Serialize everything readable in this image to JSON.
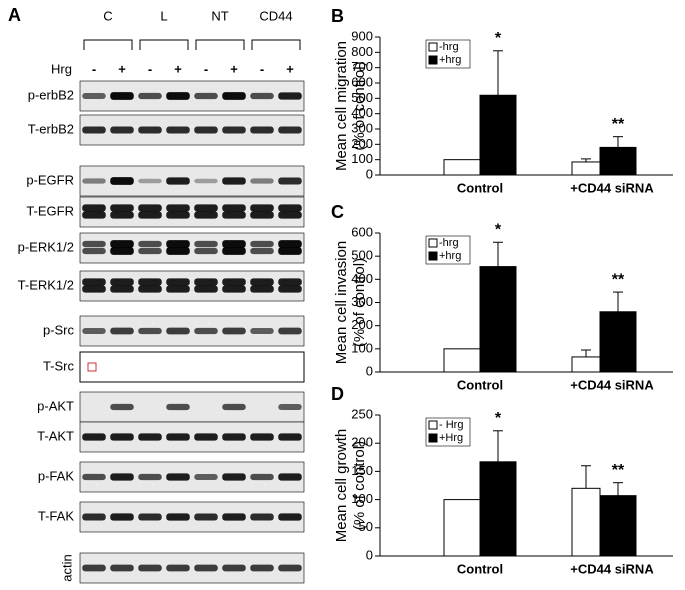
{
  "panel_a": {
    "label": "A",
    "groups": [
      "C",
      "L",
      "NT",
      "CD44"
    ],
    "treatment_label": "Hrg",
    "treatments": [
      "-",
      "+",
      "-",
      "+",
      "-",
      "+",
      "-",
      "+"
    ],
    "blots": [
      "p-erbB2",
      "T-erbB2",
      "p-EGFR",
      "T-EGFR",
      "p-ERK1/2",
      "T-ERK1/2",
      "p-Src",
      "T-Src",
      "p-AKT",
      "T-AKT",
      "p-FAK",
      "T-FAK",
      "actin"
    ]
  },
  "chart_data": [
    {
      "type": "bar",
      "panel_label": "B",
      "ylabel": [
        "Mean cell migration",
        "(% of control)"
      ],
      "categories": [
        "Control",
        "+CD44 siRNA"
      ],
      "series": [
        {
          "name": "-hrg",
          "color": "#ffffff",
          "values": [
            100,
            85
          ],
          "errors": [
            null,
            20
          ]
        },
        {
          "name": "+hrg",
          "color": "#000000",
          "values": [
            520,
            180
          ],
          "errors": [
            290,
            70
          ]
        }
      ],
      "annotations": [
        "*",
        "**"
      ],
      "ylim": [
        0,
        900
      ],
      "yticks": [
        0,
        100,
        200,
        300,
        400,
        500,
        600,
        700,
        800,
        900
      ]
    },
    {
      "type": "bar",
      "panel_label": "C",
      "ylabel": [
        "Mean cell invasion",
        "(% of control)"
      ],
      "categories": [
        "Control",
        "+CD44 siRNA"
      ],
      "series": [
        {
          "name": "-hrg",
          "color": "#ffffff",
          "values": [
            100,
            65
          ],
          "errors": [
            null,
            30
          ]
        },
        {
          "name": "+hrg",
          "color": "#000000",
          "values": [
            455,
            260
          ],
          "errors": [
            105,
            85
          ]
        }
      ],
      "annotations": [
        "*",
        "**"
      ],
      "ylim": [
        0,
        600
      ],
      "yticks": [
        0,
        100,
        200,
        300,
        400,
        500,
        600
      ]
    },
    {
      "type": "bar",
      "panel_label": "D",
      "ylabel": [
        "Mean cell growth",
        "(% of control)"
      ],
      "categories": [
        "Control",
        "+CD44 siRNA"
      ],
      "series": [
        {
          "name": "- Hrg",
          "color": "#ffffff",
          "values": [
            100,
            120
          ],
          "errors": [
            null,
            40
          ]
        },
        {
          "name": "+Hrg",
          "color": "#000000",
          "values": [
            167,
            107
          ],
          "errors": [
            55,
            23
          ]
        }
      ],
      "annotations": [
        "*",
        "**"
      ],
      "ylim": [
        0,
        250
      ],
      "yticks": [
        0,
        50,
        100,
        150,
        200,
        250
      ]
    }
  ]
}
